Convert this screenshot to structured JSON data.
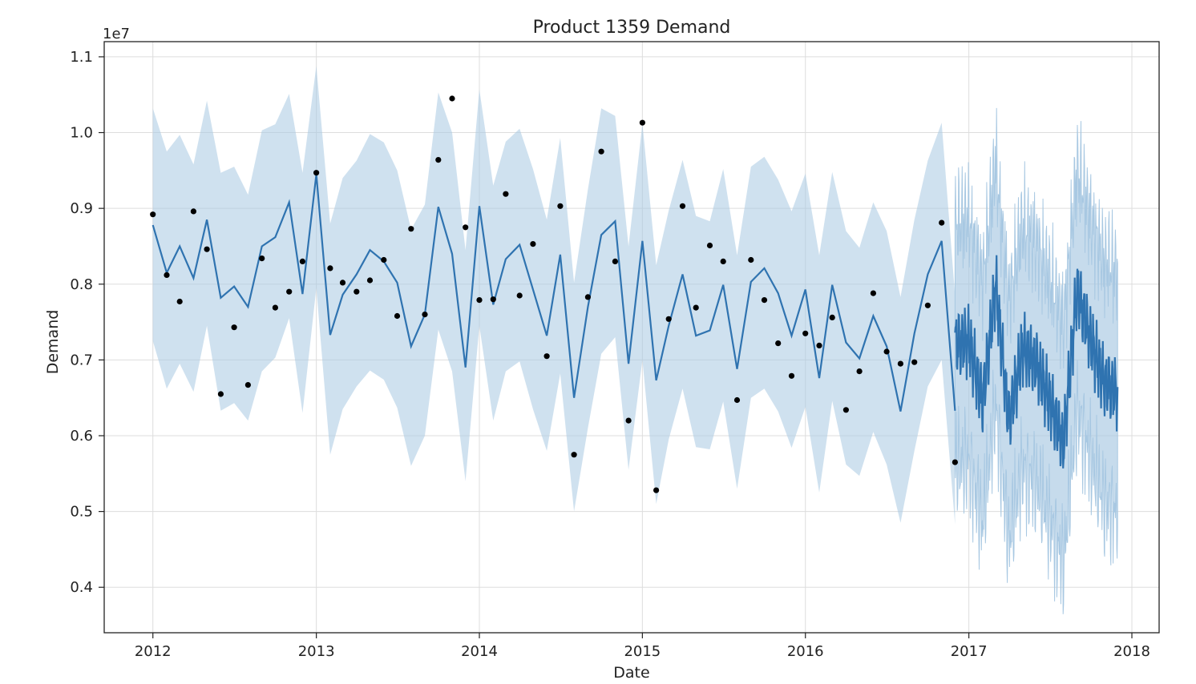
{
  "chart_data": {
    "type": "line",
    "title": "Product 1359 Demand",
    "xlabel": "Date",
    "ylabel": "Demand",
    "y_scale_label": "1e7",
    "xlim": [
      "2011-09-14",
      "2018-03-03"
    ],
    "ylim": [
      3.4,
      11.2
    ],
    "x_ticks": [
      {
        "date": "2012-01-01",
        "label": "2012"
      },
      {
        "date": "2013-01-01",
        "label": "2013"
      },
      {
        "date": "2014-01-01",
        "label": "2014"
      },
      {
        "date": "2015-01-01",
        "label": "2015"
      },
      {
        "date": "2016-01-01",
        "label": "2016"
      },
      {
        "date": "2017-01-01",
        "label": "2017"
      },
      {
        "date": "2018-01-01",
        "label": "2018"
      }
    ],
    "y_ticks": [
      {
        "value": 4.0,
        "label": "0.4"
      },
      {
        "value": 5.0,
        "label": "0.5"
      },
      {
        "value": 6.0,
        "label": "0.6"
      },
      {
        "value": 7.0,
        "label": "0.7"
      },
      {
        "value": 8.0,
        "label": "0.8"
      },
      {
        "value": 9.0,
        "label": "0.9"
      },
      {
        "value": 10.0,
        "label": "1.0"
      },
      {
        "value": 11.0,
        "label": "1.1"
      }
    ],
    "grid": true,
    "colors": {
      "forecast_line": "#2f73b0",
      "interval_band": "#a8c8e2",
      "observed_point": "#000000",
      "grid": "#dddddd",
      "axis": "#222222"
    },
    "series": [
      {
        "kind": "observed",
        "points": [
          [
            "2012-01-01",
            8.92
          ],
          [
            "2012-02-01",
            8.12
          ],
          [
            "2012-03-01",
            7.77
          ],
          [
            "2012-04-01",
            8.96
          ],
          [
            "2012-05-01",
            8.46
          ],
          [
            "2012-06-01",
            6.55
          ],
          [
            "2012-07-01",
            7.43
          ],
          [
            "2012-08-01",
            6.67
          ],
          [
            "2012-09-01",
            8.34
          ],
          [
            "2012-10-01",
            7.69
          ],
          [
            "2012-11-01",
            7.9
          ],
          [
            "2012-12-01",
            8.3
          ],
          [
            "2013-01-01",
            9.47
          ],
          [
            "2013-02-01",
            8.21
          ],
          [
            "2013-03-01",
            8.02
          ],
          [
            "2013-04-01",
            7.9
          ],
          [
            "2013-05-01",
            8.05
          ],
          [
            "2013-06-01",
            8.32
          ],
          [
            "2013-07-01",
            7.58
          ],
          [
            "2013-08-01",
            8.73
          ],
          [
            "2013-09-01",
            7.6
          ],
          [
            "2013-10-01",
            9.64
          ],
          [
            "2013-11-01",
            10.45
          ],
          [
            "2013-12-01",
            8.75
          ],
          [
            "2014-01-01",
            7.79
          ],
          [
            "2014-02-01",
            7.8
          ],
          [
            "2014-03-01",
            9.19
          ],
          [
            "2014-04-01",
            7.85
          ],
          [
            "2014-05-01",
            8.53
          ],
          [
            "2014-06-01",
            7.05
          ],
          [
            "2014-07-01",
            9.03
          ],
          [
            "2014-08-01",
            5.75
          ],
          [
            "2014-09-01",
            7.83
          ],
          [
            "2014-10-01",
            9.75
          ],
          [
            "2014-11-01",
            8.3
          ],
          [
            "2014-12-01",
            6.2
          ],
          [
            "2015-01-01",
            10.13
          ],
          [
            "2015-02-01",
            5.28
          ],
          [
            "2015-03-01",
            7.54
          ],
          [
            "2015-04-01",
            9.03
          ],
          [
            "2015-05-01",
            7.69
          ],
          [
            "2015-06-01",
            8.51
          ],
          [
            "2015-07-01",
            8.3
          ],
          [
            "2015-08-01",
            6.47
          ],
          [
            "2015-09-01",
            8.32
          ],
          [
            "2015-10-01",
            7.79
          ],
          [
            "2015-11-01",
            7.22
          ],
          [
            "2015-12-01",
            6.79
          ],
          [
            "2016-01-01",
            7.35
          ],
          [
            "2016-02-01",
            7.19
          ],
          [
            "2016-03-01",
            7.56
          ],
          [
            "2016-04-01",
            6.34
          ],
          [
            "2016-05-01",
            6.85
          ],
          [
            "2016-06-01",
            7.88
          ],
          [
            "2016-07-01",
            7.11
          ],
          [
            "2016-08-01",
            6.95
          ],
          [
            "2016-09-01",
            6.97
          ],
          [
            "2016-10-01",
            7.72
          ],
          [
            "2016-11-01",
            8.81
          ],
          [
            "2016-12-01",
            5.65
          ]
        ]
      },
      {
        "kind": "forecast_history",
        "points": [
          [
            "2012-01-01",
            8.78
          ],
          [
            "2012-02-01",
            8.15
          ],
          [
            "2012-03-01",
            8.5
          ],
          [
            "2012-04-01",
            8.08
          ],
          [
            "2012-05-01",
            8.85
          ],
          [
            "2012-06-01",
            7.82
          ],
          [
            "2012-07-01",
            7.97
          ],
          [
            "2012-08-01",
            7.7
          ],
          [
            "2012-09-01",
            8.5
          ],
          [
            "2012-10-01",
            8.62
          ],
          [
            "2012-11-01",
            9.08
          ],
          [
            "2012-12-01",
            7.87
          ],
          [
            "2013-01-01",
            9.45
          ],
          [
            "2013-02-01",
            7.33
          ],
          [
            "2013-03-01",
            7.86
          ],
          [
            "2013-04-01",
            8.13
          ],
          [
            "2013-05-01",
            8.45
          ],
          [
            "2013-06-01",
            8.3
          ],
          [
            "2013-07-01",
            8.02
          ],
          [
            "2013-08-01",
            7.18
          ],
          [
            "2013-09-01",
            7.6
          ],
          [
            "2013-10-01",
            9.02
          ],
          [
            "2013-11-01",
            8.4
          ],
          [
            "2013-12-01",
            6.9
          ],
          [
            "2014-01-01",
            9.03
          ],
          [
            "2014-02-01",
            7.73
          ],
          [
            "2014-03-01",
            8.33
          ],
          [
            "2014-04-01",
            8.52
          ],
          [
            "2014-05-01",
            7.93
          ],
          [
            "2014-06-01",
            7.32
          ],
          [
            "2014-07-01",
            8.39
          ],
          [
            "2014-08-01",
            6.5
          ],
          [
            "2014-09-01",
            7.7
          ],
          [
            "2014-10-01",
            8.65
          ],
          [
            "2014-11-01",
            8.83
          ],
          [
            "2014-12-01",
            6.95
          ],
          [
            "2015-01-01",
            8.57
          ],
          [
            "2015-02-01",
            6.73
          ],
          [
            "2015-03-01",
            7.45
          ],
          [
            "2015-04-01",
            8.13
          ],
          [
            "2015-05-01",
            7.32
          ],
          [
            "2015-06-01",
            7.39
          ],
          [
            "2015-07-01",
            7.99
          ],
          [
            "2015-08-01",
            6.88
          ],
          [
            "2015-09-01",
            8.03
          ],
          [
            "2015-10-01",
            8.21
          ],
          [
            "2015-11-01",
            7.88
          ],
          [
            "2015-12-01",
            7.32
          ],
          [
            "2016-01-01",
            7.93
          ],
          [
            "2016-02-01",
            6.76
          ],
          [
            "2016-03-01",
            7.99
          ],
          [
            "2016-04-01",
            7.23
          ],
          [
            "2016-05-01",
            7.02
          ],
          [
            "2016-06-01",
            7.58
          ],
          [
            "2016-07-01",
            7.18
          ],
          [
            "2016-08-01",
            6.32
          ],
          [
            "2016-09-01",
            7.35
          ],
          [
            "2016-10-01",
            8.13
          ],
          [
            "2016-11-01",
            8.57
          ],
          [
            "2016-12-01",
            6.33
          ]
        ],
        "lower": [
          7.25,
          6.62,
          6.95,
          6.58,
          7.45,
          6.33,
          6.43,
          6.2,
          6.85,
          7.03,
          7.55,
          6.3,
          7.95,
          5.75,
          6.35,
          6.65,
          6.86,
          6.74,
          6.37,
          5.6,
          6.0,
          7.4,
          6.85,
          5.4,
          7.45,
          6.2,
          6.85,
          6.98,
          6.35,
          5.8,
          6.82,
          5.0,
          6.1,
          7.08,
          7.3,
          5.55,
          7.0,
          5.1,
          5.95,
          6.62,
          5.85,
          5.82,
          6.45,
          5.3,
          6.5,
          6.62,
          6.32,
          5.84,
          6.38,
          5.25,
          6.46,
          5.62,
          5.47,
          6.05,
          5.62,
          4.85,
          5.8,
          6.65,
          7.0,
          4.83
        ],
        "upper": [
          10.32,
          9.75,
          9.97,
          9.58,
          10.42,
          9.47,
          9.55,
          9.18,
          10.03,
          10.11,
          10.51,
          9.47,
          10.88,
          8.8,
          9.4,
          9.63,
          9.98,
          9.87,
          9.5,
          8.72,
          9.05,
          10.53,
          10.0,
          8.45,
          10.57,
          9.3,
          9.88,
          10.05,
          9.52,
          8.85,
          9.93,
          8.02,
          9.25,
          10.32,
          10.22,
          8.5,
          10.12,
          8.25,
          8.97,
          9.64,
          8.9,
          8.83,
          9.52,
          8.38,
          9.55,
          9.68,
          9.38,
          8.96,
          9.46,
          8.38,
          9.48,
          8.7,
          8.48,
          9.08,
          8.7,
          7.83,
          8.85,
          9.63,
          10.13,
          7.85
        ]
      },
      {
        "kind": "forecast_future",
        "step_days": 1,
        "start": "2016-12-01",
        "end": "2017-11-30",
        "monthly_mean": [
          7.2,
          7.25,
          6.45,
          8.05,
          6.2,
          7.15,
          6.95,
          6.45,
          5.9,
          7.9,
          7.25,
          6.7,
          6.55
        ],
        "interval_halfwidth": 1.6,
        "line_amplitude": 0.35,
        "band_amplitude": 0.4
      }
    ]
  }
}
